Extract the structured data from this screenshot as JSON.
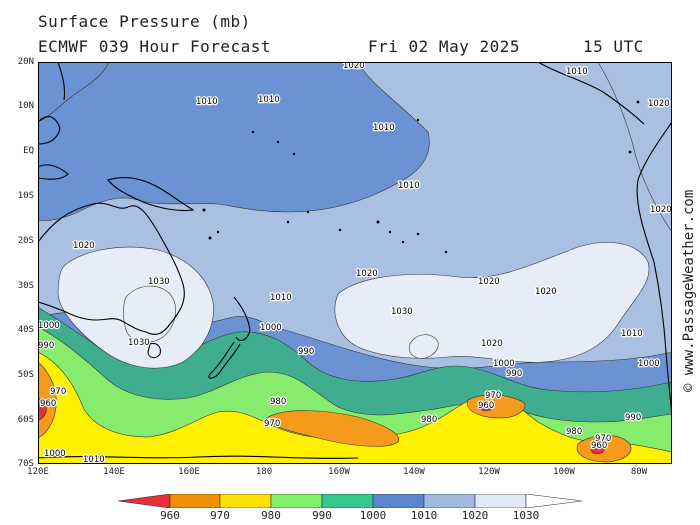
{
  "header": {
    "title": "Surface Pressure (mb)",
    "model_line": "ECMWF 039 Hour Forecast",
    "date": "Fri 02 May 2025",
    "time": "15 UTC"
  },
  "map": {
    "lat_labels": [
      "20N",
      "10N",
      "EQ",
      "10S",
      "20S",
      "30S",
      "40S",
      "50S",
      "60S",
      "70S"
    ],
    "lon_labels": [
      "120E",
      "140E",
      "160E",
      "180",
      "160W",
      "140W",
      "120W",
      "100W",
      "80W"
    ],
    "isobar_labels": {
      "l1020_top": "1020",
      "l1010_a": "1010",
      "l1010_b": "1010",
      "l1010_c": "1010",
      "l1020_aus": "1020",
      "l1030_aus": "1030",
      "l1030_aus2": "1030",
      "l1010_nz": "1010",
      "l1000_nz": "1000",
      "l990_pac": "990",
      "l1020_pac": "1020",
      "l1030_pac": "1030",
      "l1020_pac2": "1020",
      "l1020_pac3": "1020",
      "l1020_pac4": "1020",
      "l1010_se": "1010",
      "l1000_se": "1000",
      "l990_se": "990",
      "l970_low": "970",
      "l960_low": "960",
      "l980_sw": "980",
      "l970_sw": "970",
      "l980_s": "980",
      "l990_e": "990",
      "l980_e": "980",
      "l970_e": "970",
      "l960_e": "960",
      "l970_w": "970",
      "l960_w": "960",
      "l1000_w": "1000",
      "l990_w": "990",
      "l1000_bl": "1000",
      "l1010_bl": "1010",
      "l1020_ne": "1020",
      "l1010_ne": "1010",
      "l1000_ne": "1000",
      "l1020_right": "1020",
      "l1010_right": "1010"
    }
  },
  "colorbar": {
    "labels": [
      "960",
      "970",
      "980",
      "990",
      "1000",
      "1010",
      "1020",
      "1030"
    ],
    "colors": [
      "#e8303a",
      "#f28c00",
      "#ffe000",
      "#7ef06a",
      "#33c98a",
      "#5b86cd",
      "#9fb9e0",
      "#dfe8f6",
      "#ffffff"
    ]
  },
  "credit": "© www.PassageWeather.com",
  "colors": {
    "p1030": "#e6edf8",
    "p1020": "#a9c0e3",
    "p1010": "#6b92d2",
    "p1000": "#3fae8e",
    "p990": "#86ec6e",
    "p980": "#fff000",
    "p970": "#f59a1a",
    "p960": "#e8303a",
    "land_outline": "#000000"
  }
}
